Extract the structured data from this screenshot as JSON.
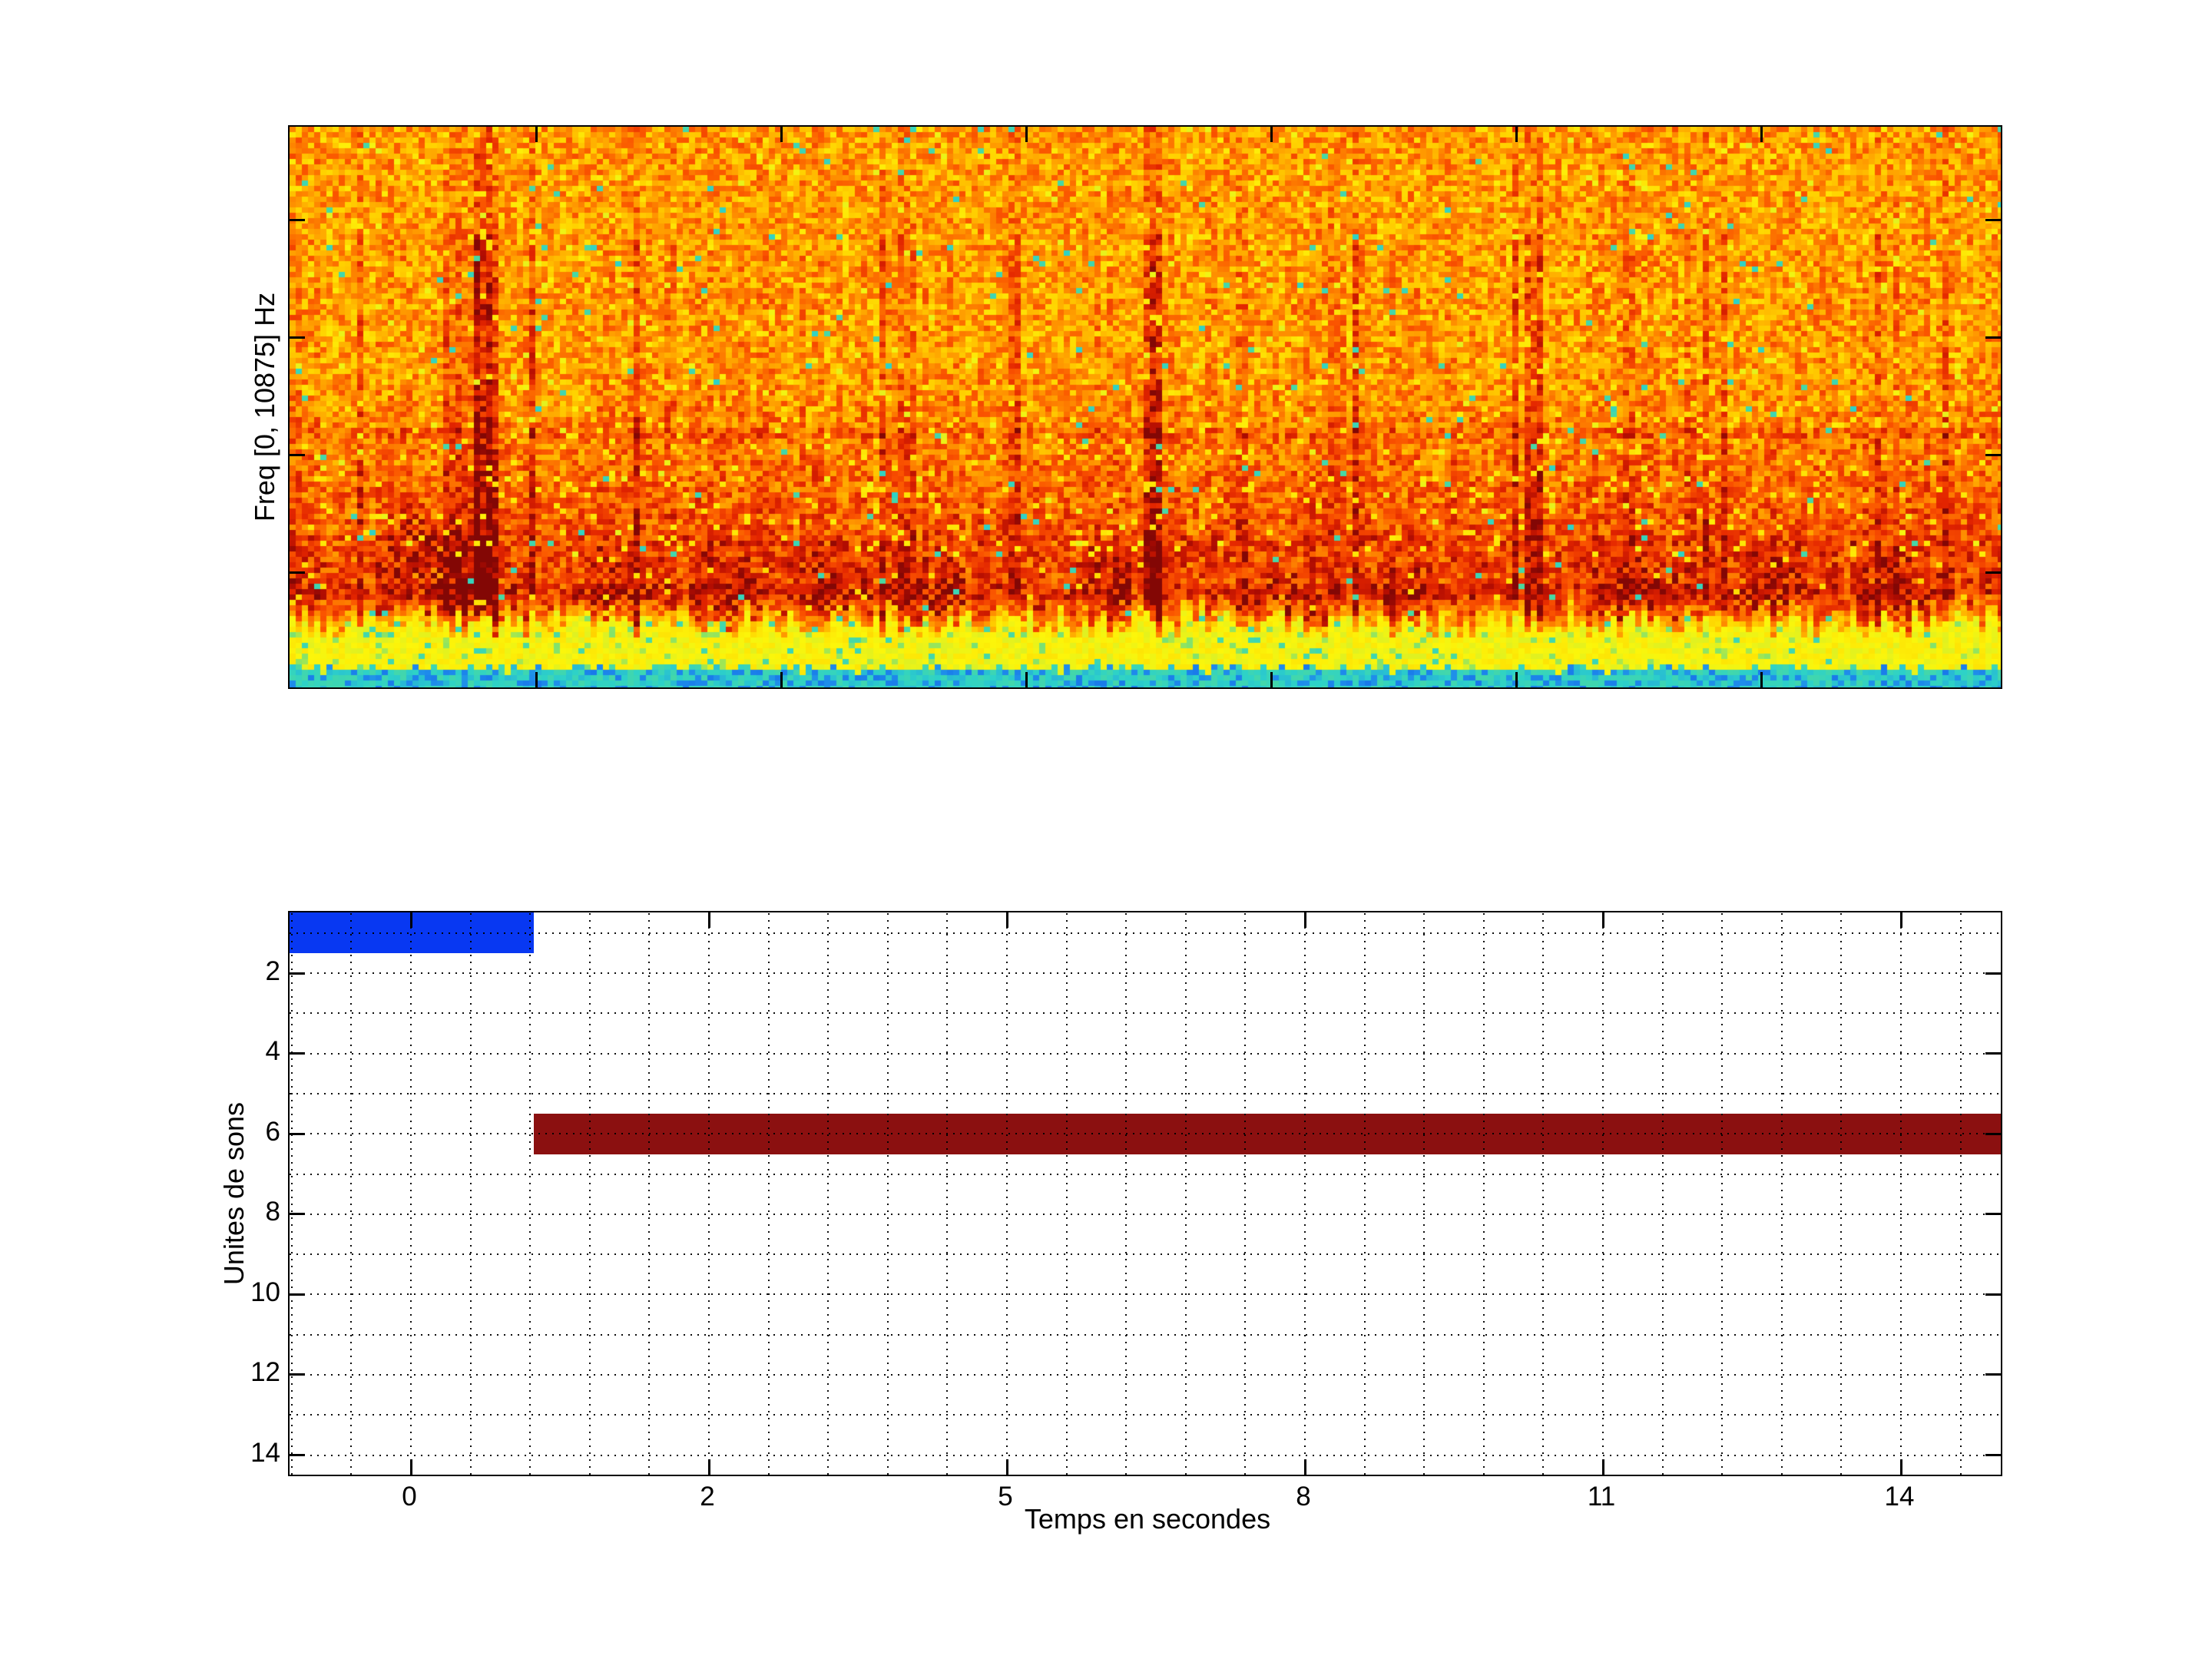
{
  "figure": {
    "background": "#ffffff"
  },
  "chart_data": [
    {
      "type": "heatmap",
      "subtype": "spectrogram",
      "title": "",
      "xlabel": "",
      "ylabel": "Freq [0, 10875] Hz",
      "freq_range_hz": [
        0,
        10875
      ],
      "colormap": "jet",
      "x_tick_labels": [],
      "y_tick_labels": [],
      "grid": "off",
      "legend": "none",
      "content_bands_top_to_bottom": [
        {
          "band": "main body",
          "approx_height_fraction": 0.9,
          "appearance": "orange noise with yellow specks, sparse cyan dots, red vertical streaks, dark-red blotch band in lower third"
        },
        {
          "band": "yellow band",
          "approx_height_fraction": 0.07,
          "appearance": "bright yellow with green/cyan specks"
        },
        {
          "band": "cyan strip",
          "approx_height_fraction": 0.03,
          "appearance": "cyan with dark blue speckles"
        }
      ]
    },
    {
      "type": "bar",
      "orientation": "horizontal",
      "title": "",
      "xlabel": "Temps en secondes",
      "ylabel": "Unites de sons",
      "xtick_labels": [
        "0",
        "2",
        "5",
        "8",
        "11",
        "14"
      ],
      "ytick_labels": [
        "2",
        "4",
        "6",
        "8",
        "10",
        "12",
        "14"
      ],
      "y_range": [
        0.5,
        14.5
      ],
      "grid": "dotted",
      "legend": "none",
      "series": [
        {
          "name": "sound-unit-1",
          "unit": 1,
          "start_s": -0.8,
          "end_s": 0.8,
          "color": "#0838f2"
        },
        {
          "name": "sound-unit-6",
          "unit": 6,
          "start_s": 0.8,
          "end_s": 15.0,
          "color": "#8b1010"
        }
      ]
    }
  ],
  "colors": {
    "axis": "#000000",
    "grid": "#000000",
    "bar_blue": "#0838f2",
    "bar_dark_red": "#8b1010"
  }
}
